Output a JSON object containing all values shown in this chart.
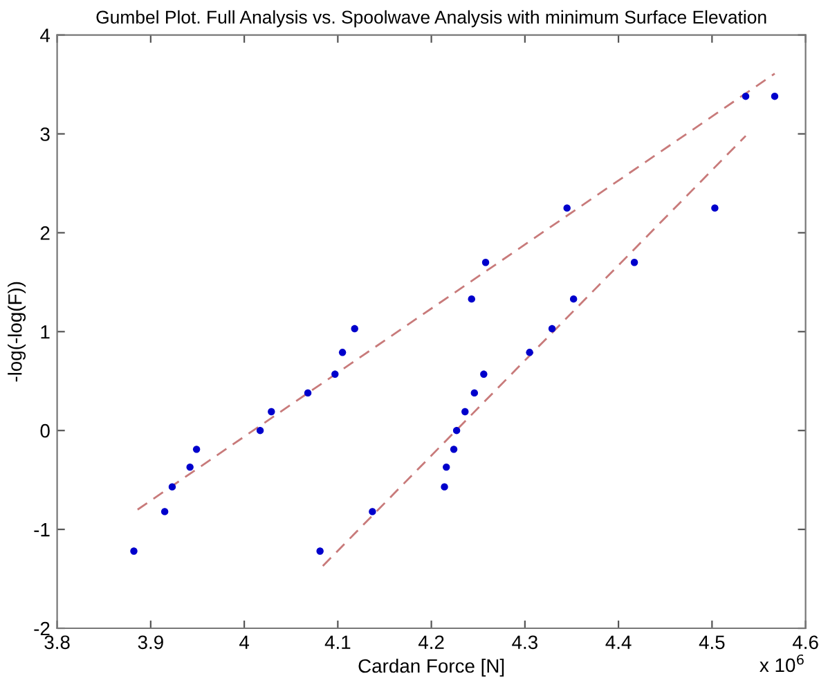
{
  "chart_data": {
    "type": "scatter",
    "title": "Gumbel Plot. Full Analysis vs. Spoolwave Analysis with minimum Surface Elevation",
    "xlabel": "Cardan Force [N]",
    "ylabel": "-log(-log(F))",
    "annotations": [
      "x 10$^{6}$"
    ],
    "series": [
      {
        "color": "#0000cc",
        "marker": "circle",
        "x": [
          3.882,
          3.915,
          3.923,
          3.942,
          3.949,
          4.017,
          4.029,
          4.068,
          4.097,
          4.105,
          4.118,
          4.243,
          4.258,
          4.345,
          4.536
        ],
        "values": [
          -1.22,
          -0.82,
          -0.57,
          -0.37,
          -0.19,
          0.0,
          0.19,
          0.38,
          0.57,
          0.79,
          1.03,
          1.33,
          1.7,
          2.25,
          3.38
        ]
      },
      {
        "color": "#0000cc",
        "marker": "circle",
        "x": [
          4.081,
          4.137,
          4.214,
          4.216,
          4.224,
          4.227,
          4.236,
          4.246,
          4.256,
          4.305,
          4.329,
          4.352,
          4.417,
          4.503,
          4.567
        ],
        "values": [
          -1.22,
          -0.82,
          -0.57,
          -0.37,
          -0.19,
          0.0,
          0.19,
          0.38,
          0.57,
          0.79,
          1.03,
          1.33,
          1.7,
          2.25,
          3.38
        ]
      },
      {
        "type": "line",
        "color": "#c87a7a",
        "line_style": "dashed",
        "x": [
          3.886,
          4.567
        ],
        "values": [
          -0.8,
          3.61
        ]
      },
      {
        "type": "line",
        "color": "#c87a7a",
        "line_style": "dashed",
        "x": [
          4.084,
          4.536
        ],
        "values": [
          -1.37,
          2.98
        ]
      }
    ],
    "xlim": [
      3.8,
      4.6
    ],
    "xticks": [
      3.8,
      3.9,
      4,
      4.1,
      4.2,
      4.3,
      4.4,
      4.5,
      4.6
    ],
    "ylim": [
      -2,
      4
    ],
    "yticks": [
      -2,
      -1,
      0,
      1,
      2,
      3,
      4
    ],
    "grid": false,
    "legend": false
  }
}
